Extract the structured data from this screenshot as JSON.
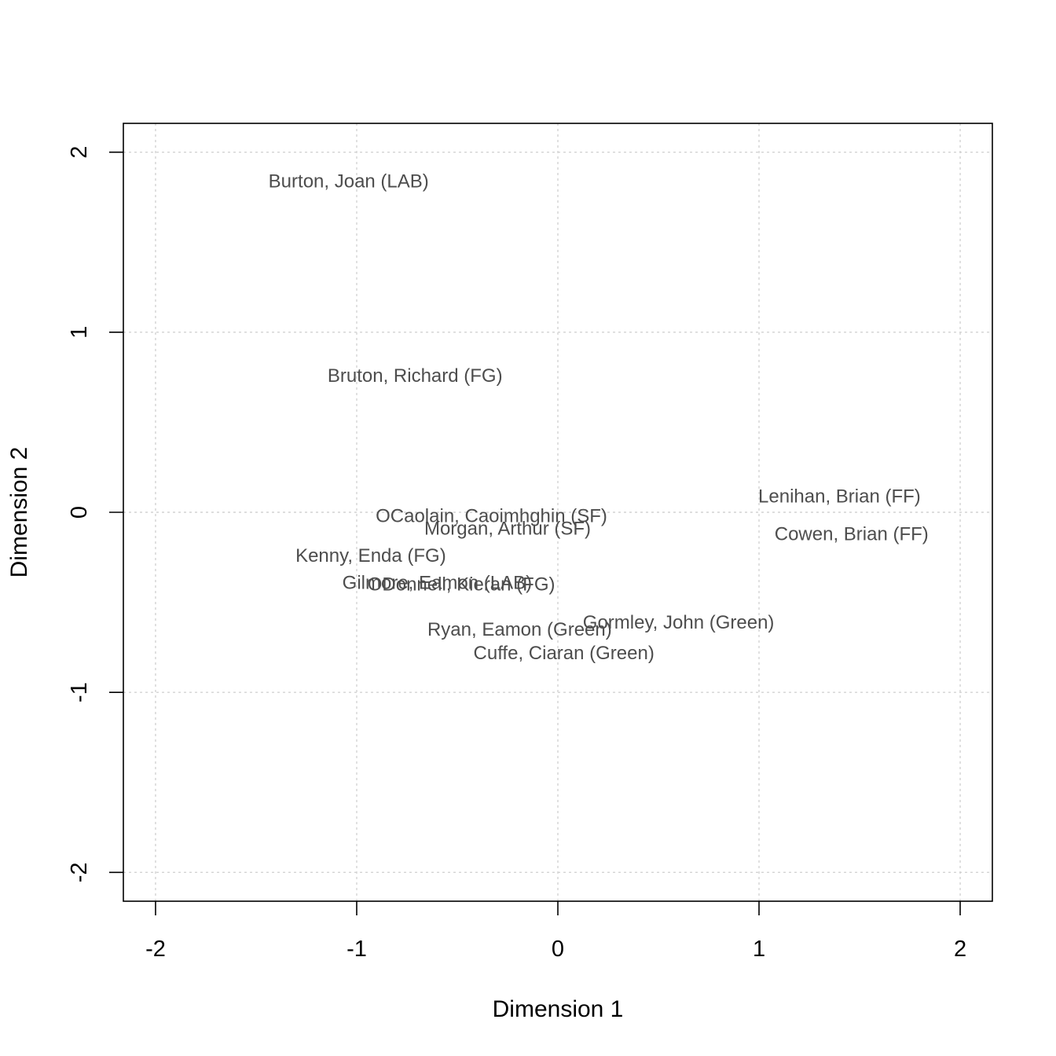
{
  "chart_data": {
    "type": "scatter",
    "title": "",
    "xlabel": "Dimension 1",
    "ylabel": "Dimension 2",
    "xlim": [
      -2.16,
      2.16
    ],
    "ylim": [
      -2.16,
      2.16
    ],
    "xticks": [
      -2,
      -1,
      0,
      1,
      2
    ],
    "yticks": [
      -2,
      -1,
      0,
      1,
      2
    ],
    "grid": true,
    "points": [
      {
        "label": "Burton, Joan (LAB)",
        "x": -1.04,
        "y": 1.84
      },
      {
        "label": "Bruton, Richard (FG)",
        "x": -0.71,
        "y": 0.76
      },
      {
        "label": "Lenihan, Brian (FF)",
        "x": 1.4,
        "y": 0.09
      },
      {
        "label": "OCaolain, Caoimhghin (SF)",
        "x": -0.33,
        "y": -0.02
      },
      {
        "label": "Morgan, Arthur (SF)",
        "x": -0.25,
        "y": -0.09
      },
      {
        "label": "Cowen, Brian (FF)",
        "x": 1.46,
        "y": -0.12
      },
      {
        "label": "Kenny, Enda (FG)",
        "x": -0.93,
        "y": -0.24
      },
      {
        "label": "Gilmore, Eamon (LAB)",
        "x": -0.6,
        "y": -0.39
      },
      {
        "label": "ODonnell, Kieran (FG)",
        "x": -0.48,
        "y": -0.4
      },
      {
        "label": "Gormley, John (Green)",
        "x": 0.6,
        "y": -0.61
      },
      {
        "label": "Ryan, Eamon (Green)",
        "x": -0.19,
        "y": -0.65
      },
      {
        "label": "Cuffe, Ciaran (Green)",
        "x": 0.03,
        "y": -0.78
      }
    ]
  }
}
